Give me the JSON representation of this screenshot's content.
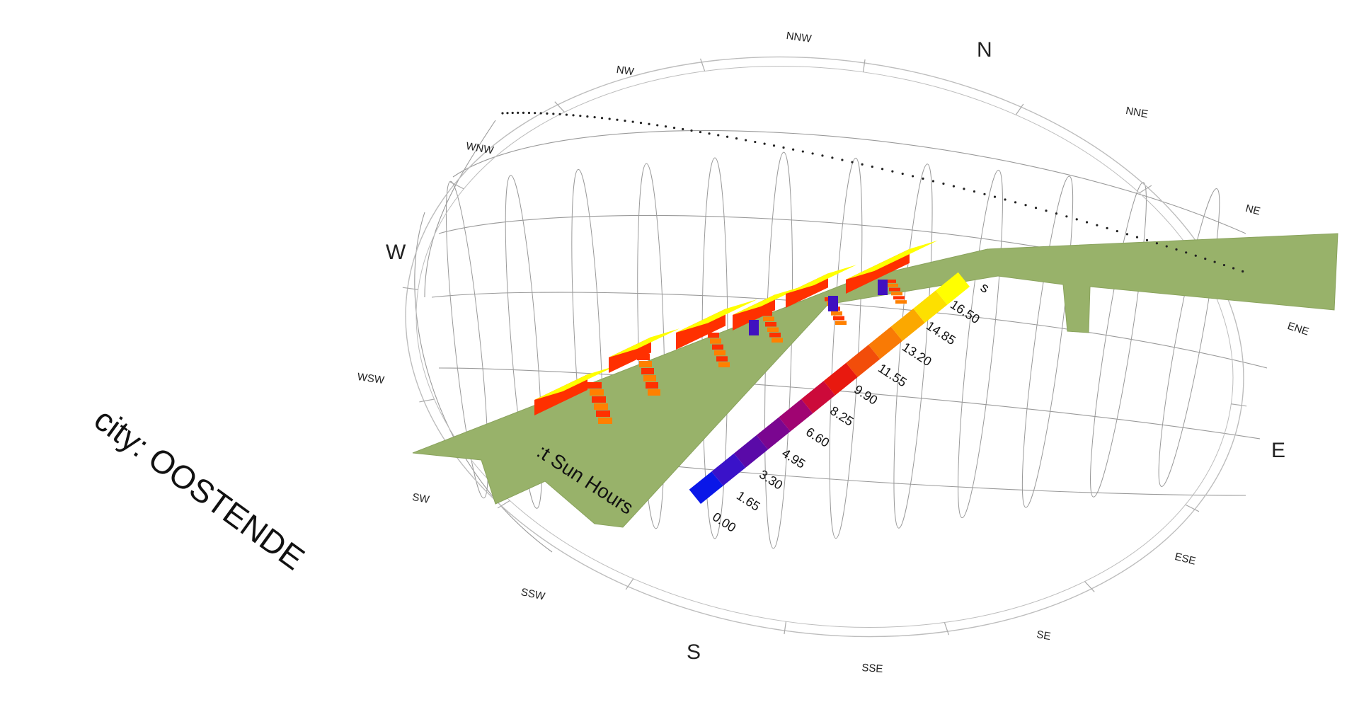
{
  "city_label": "city: OOSTENDE",
  "legend": {
    "title": ":t Sun Hours",
    "title_fragment_top": "s",
    "ticks": [
      "0.00",
      "1.65",
      "3.30",
      "4.95",
      "6.60",
      "8.25",
      "9.90",
      "11.55",
      "13.20",
      "14.85",
      "16.50"
    ],
    "colors": [
      "#0a17e8",
      "#3a12c9",
      "#5a0aa8",
      "#7a0690",
      "#a00472",
      "#cc0a3a",
      "#e8190f",
      "#f24d0a",
      "#f97a05",
      "#fba800",
      "#fde000",
      "#ffff00"
    ]
  },
  "compass": {
    "cardinals": [
      "N",
      "E",
      "S",
      "W"
    ],
    "intercardinals": [
      "NNE",
      "NE",
      "ENE",
      "ESE",
      "SE",
      "SSE",
      "SSW",
      "SW",
      "WSW",
      "WNW",
      "NW",
      "NNW"
    ]
  },
  "colors": {
    "ground": "#98b26a",
    "ground_edge": "#8aa35d",
    "sun_path": "#9a9a9a",
    "building_hot": "#ffff00",
    "building_warm": "#ff8000",
    "building_mid": "#ff3000",
    "building_cold": "#4010c0"
  }
}
